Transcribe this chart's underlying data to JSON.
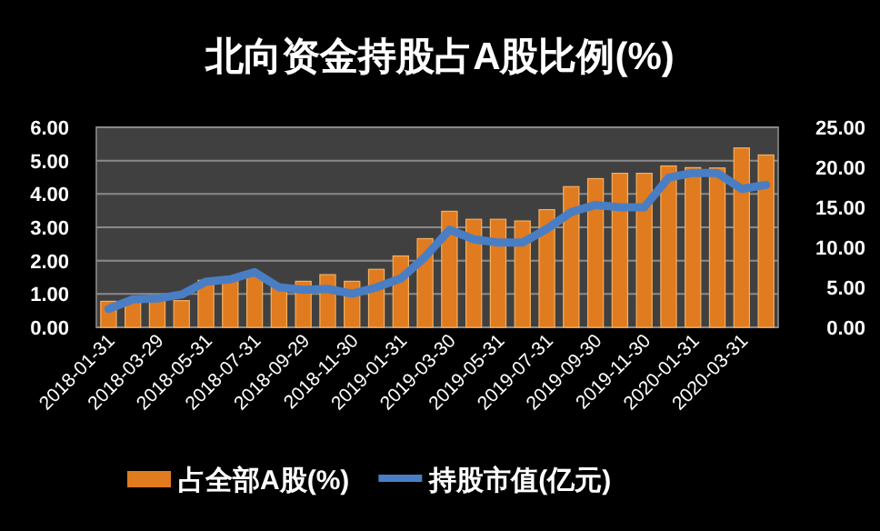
{
  "chart_data": {
    "type": "bar",
    "title": "北向资金持股占A股比例(%)",
    "categories": [
      "2018-01-31",
      null,
      "2018-03-29",
      null,
      "2018-05-31",
      null,
      "2018-07-31",
      null,
      "2018-09-29",
      null,
      "2018-11-30",
      null,
      "2019-01-31",
      null,
      "2019-03-30",
      null,
      "2019-05-31",
      null,
      "2019-07-31",
      null,
      "2019-09-30",
      null,
      "2019-11-30",
      null,
      "2020-01-31",
      null,
      "2020-03-31",
      null
    ],
    "series": [
      {
        "name": "占全部A股(%)",
        "color": "#e07b20",
        "values": [
          0.78,
          0.78,
          0.8,
          0.8,
          1.41,
          1.5,
          1.55,
          1.2,
          1.38,
          1.58,
          1.38,
          1.74,
          2.14,
          2.66,
          3.48,
          3.24,
          3.24,
          3.19,
          3.53,
          4.22,
          4.46,
          4.62,
          4.62,
          4.84,
          4.79,
          4.78,
          5.38,
          5.17
        ]
      },
      {
        "name": "持股市值(亿元)",
        "type": "line",
        "axis": "y2",
        "color": "#4a7ec4",
        "values": [
          2.3,
          3.5,
          3.6,
          4.1,
          5.7,
          6.0,
          6.9,
          5.0,
          4.7,
          4.8,
          4.2,
          5.0,
          6.1,
          8.8,
          12.2,
          11.0,
          10.6,
          10.6,
          12.3,
          14.4,
          15.3,
          15.0,
          15.0,
          18.7,
          19.3,
          19.3,
          17.3,
          17.8
        ]
      }
    ],
    "ylim": [
      0,
      6
    ],
    "yticks": [
      {
        "value": 0,
        "label": "0.00"
      },
      {
        "value": 1,
        "label": "1.00"
      },
      {
        "value": 2,
        "label": "2.00"
      },
      {
        "value": 3,
        "label": "3.00"
      },
      {
        "value": 4,
        "label": "4.00"
      },
      {
        "value": 5,
        "label": "5.00"
      },
      {
        "value": 6,
        "label": "6.00"
      }
    ],
    "y2lim": [
      0,
      25
    ],
    "y2ticks": [
      {
        "value": 0,
        "label": "0.00"
      },
      {
        "value": 5,
        "label": "5.00"
      },
      {
        "value": 10,
        "label": "10.00"
      },
      {
        "value": 15,
        "label": "15.00"
      },
      {
        "value": 20,
        "label": "20.00"
      },
      {
        "value": 25,
        "label": "25.00"
      }
    ],
    "grid": "y",
    "legend": "bottom"
  }
}
